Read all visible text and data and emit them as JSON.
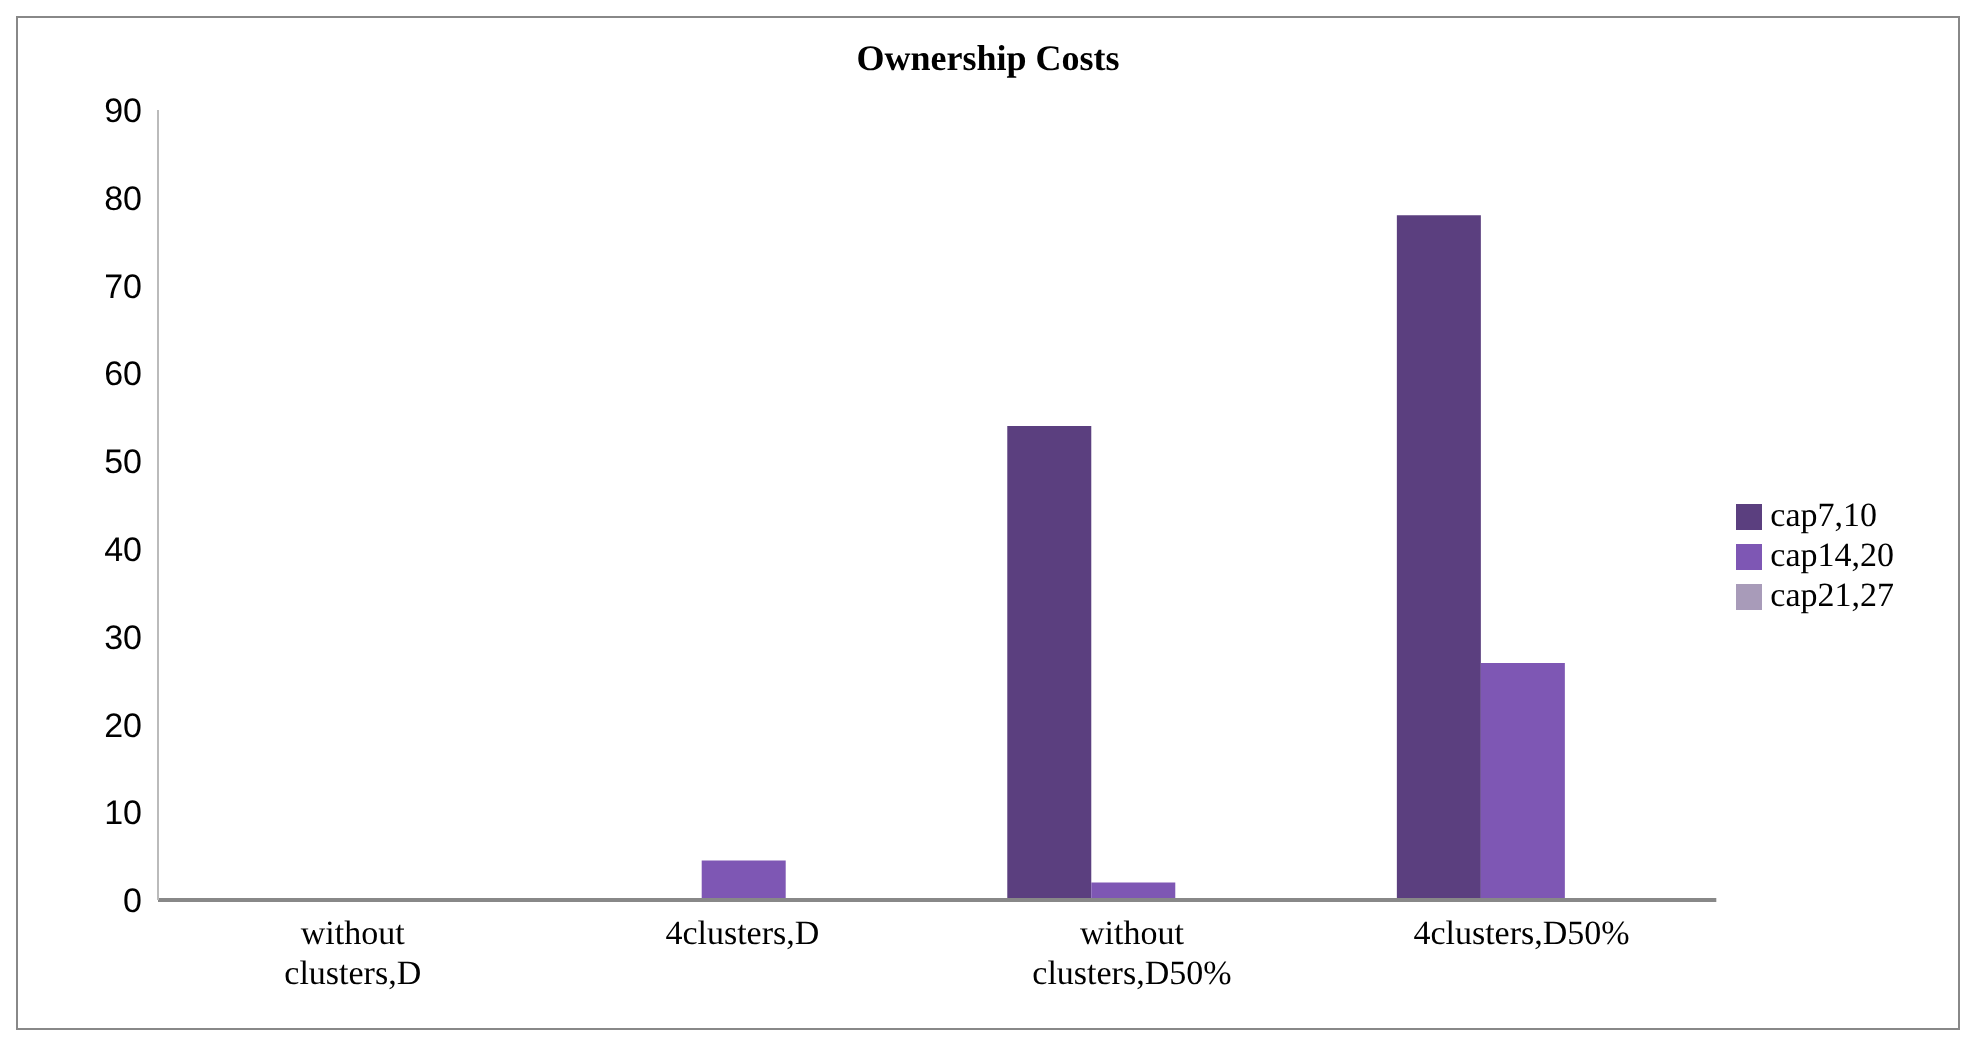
{
  "chart_data": {
    "type": "bar",
    "title": "Ownership Costs",
    "categories": [
      "without clusters,D",
      "4clusters,D",
      "without clusters,D50%",
      "4clusters,D50%"
    ],
    "series": [
      {
        "name": "cap7,10",
        "color": "#5b3f7f",
        "values": [
          0,
          0,
          54,
          78
        ]
      },
      {
        "name": "cap14,20",
        "color": "#7e57b4",
        "values": [
          0,
          4.5,
          2,
          27
        ]
      },
      {
        "name": "cap21,27",
        "color": "#a89bb9",
        "values": [
          0,
          0,
          0,
          0
        ]
      }
    ],
    "ylim": [
      0,
      90
    ],
    "yticks": [
      0,
      10,
      20,
      30,
      40,
      50,
      60,
      70,
      80,
      90
    ],
    "grid": false,
    "legend": "right"
  }
}
